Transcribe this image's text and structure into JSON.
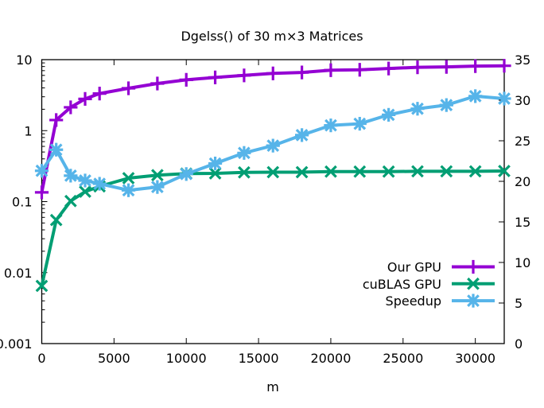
{
  "chart_data": {
    "type": "line",
    "title": "Dgelss() of 30 m×3 Matrices",
    "xlabel": "m",
    "ylabel": "",
    "y2label": "",
    "xlim": [
      0,
      32000
    ],
    "ylim": [
      0.001,
      10
    ],
    "yscale": "log",
    "y2lim": [
      0,
      35
    ],
    "y2scale": "linear",
    "grid": false,
    "legend_position": "bottom-right",
    "x_ticks": [
      "0",
      "5000",
      "10000",
      "15000",
      "20000",
      "25000",
      "30000"
    ],
    "y_ticks": [
      "0.001",
      "0.01",
      "0.1",
      "1",
      "10"
    ],
    "y2_ticks": [
      "0",
      "5",
      "10",
      "15",
      "20",
      "25",
      "30",
      "35"
    ],
    "x": [
      0,
      1000,
      2000,
      3000,
      4000,
      6000,
      8000,
      10000,
      12000,
      14000,
      16000,
      18000,
      20000,
      22000,
      24000,
      26000,
      28000,
      30000,
      32000
    ],
    "series": [
      {
        "name": "Our GPU",
        "axis": "left",
        "color": "#9400d3",
        "marker": "plus",
        "values": [
          0.135,
          1.41,
          2.13,
          2.8,
          3.33,
          3.95,
          4.61,
          5.2,
          5.62,
          6.0,
          6.4,
          6.6,
          7.1,
          7.2,
          7.5,
          7.8,
          7.9,
          8.1,
          8.2
        ]
      },
      {
        "name": "cuBLAS GPU",
        "axis": "left",
        "color": "#009e73",
        "marker": "cross",
        "values": [
          0.0065,
          0.055,
          0.102,
          0.138,
          0.164,
          0.214,
          0.236,
          0.248,
          0.25,
          0.258,
          0.26,
          0.26,
          0.265,
          0.265,
          0.265,
          0.267,
          0.267,
          0.267,
          0.27
        ]
      },
      {
        "name": "Speedup",
        "axis": "right",
        "color": "#56b4e9",
        "marker": "star",
        "values": [
          21.3,
          23.9,
          20.7,
          20.1,
          19.7,
          18.9,
          19.3,
          20.9,
          22.2,
          23.5,
          24.4,
          25.7,
          26.9,
          27.1,
          28.2,
          28.95,
          29.4,
          30.5,
          30.2
        ]
      }
    ]
  }
}
